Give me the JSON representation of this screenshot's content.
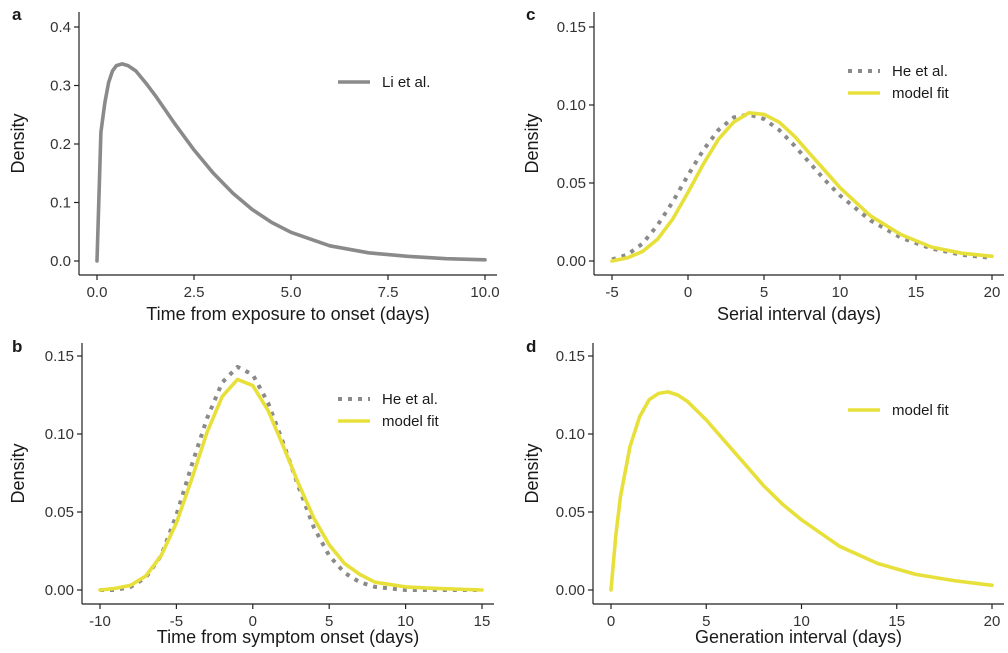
{
  "colors": {
    "grey": "#8a8a8a",
    "yellow": "#e8e03a"
  },
  "chart_data": [
    {
      "panel": "a",
      "type": "line",
      "xlabel": "Time from exposure to onset (days)",
      "ylabel": "Density",
      "xlim": [
        0,
        10
      ],
      "ylim": [
        0,
        0.4
      ],
      "xticks": [
        0,
        2.5,
        5,
        7.5,
        10
      ],
      "xtick_labels": [
        "0.0",
        "2.5",
        "5.0",
        "7.5",
        "10.0"
      ],
      "yticks": [
        0,
        0.1,
        0.2,
        0.3,
        0.4
      ],
      "ytick_labels": [
        "0.0",
        "0.1",
        "0.2",
        "0.3",
        "0.4"
      ],
      "legend_position": "top-right",
      "series": [
        {
          "name": "Li et al.",
          "style": "solid",
          "color": "#8a8a8a",
          "x": [
            0,
            0.1,
            0.2,
            0.3,
            0.4,
            0.5,
            0.65,
            0.8,
            1.0,
            1.25,
            1.5,
            2.0,
            2.5,
            3.0,
            3.5,
            4.0,
            4.5,
            5.0,
            6.0,
            7.0,
            8.0,
            9.0,
            10.0
          ],
          "y": [
            0.0,
            0.22,
            0.27,
            0.305,
            0.325,
            0.334,
            0.337,
            0.334,
            0.325,
            0.305,
            0.283,
            0.235,
            0.19,
            0.15,
            0.116,
            0.088,
            0.066,
            0.049,
            0.026,
            0.014,
            0.008,
            0.004,
            0.002
          ]
        }
      ]
    },
    {
      "panel": "b",
      "type": "line",
      "xlabel": "Time from symptom onset (days)",
      "ylabel": "Density",
      "xlim": [
        -10,
        15
      ],
      "ylim": [
        0,
        0.15
      ],
      "xticks": [
        -10,
        -5,
        0,
        5,
        10,
        15
      ],
      "xtick_labels": [
        "-10",
        "-5",
        "0",
        "5",
        "10",
        "15"
      ],
      "yticks": [
        0,
        0.05,
        0.1,
        0.15
      ],
      "ytick_labels": [
        "0.00",
        "0.05",
        "0.10",
        "0.15"
      ],
      "legend_position": "top-right",
      "series": [
        {
          "name": "He et al.",
          "style": "dotted",
          "color": "#8a8a8a",
          "x": [
            -10,
            -9,
            -8,
            -7,
            -6,
            -5,
            -4,
            -3,
            -2,
            -1,
            0,
            1,
            2,
            3,
            4,
            5,
            6,
            7,
            8,
            10,
            12,
            15
          ],
          "y": [
            0.0,
            0.0,
            0.002,
            0.008,
            0.022,
            0.048,
            0.08,
            0.11,
            0.133,
            0.143,
            0.138,
            0.12,
            0.094,
            0.066,
            0.04,
            0.022,
            0.011,
            0.005,
            0.002,
            0.0,
            0.0,
            0.0
          ]
        },
        {
          "name": "model fit",
          "style": "solid",
          "color": "#e8e03a",
          "x": [
            -10,
            -9,
            -8,
            -7,
            -6,
            -5,
            -4,
            -3,
            -2,
            -1,
            0,
            1,
            2,
            3,
            4,
            5,
            6,
            7,
            8,
            10,
            12,
            15
          ],
          "y": [
            0.0,
            0.001,
            0.003,
            0.009,
            0.022,
            0.043,
            0.071,
            0.101,
            0.124,
            0.135,
            0.131,
            0.115,
            0.092,
            0.068,
            0.046,
            0.029,
            0.017,
            0.01,
            0.005,
            0.002,
            0.001,
            0.0
          ]
        }
      ]
    },
    {
      "panel": "c",
      "type": "line",
      "xlabel": "Serial interval (days)",
      "ylabel": "Density",
      "xlim": [
        -5,
        20
      ],
      "ylim": [
        0,
        0.15
      ],
      "xticks": [
        -5,
        0,
        5,
        10,
        15,
        20
      ],
      "xtick_labels": [
        "-5",
        "0",
        "5",
        "10",
        "15",
        "20"
      ],
      "yticks": [
        0,
        0.05,
        0.1,
        0.15
      ],
      "ytick_labels": [
        "0.00",
        "0.05",
        "0.10",
        "0.15"
      ],
      "legend_position": "top-right",
      "series": [
        {
          "name": "He et al.",
          "style": "dotted",
          "color": "#8a8a8a",
          "x": [
            -5,
            -4,
            -3,
            -2,
            -1,
            0,
            1,
            2,
            3,
            4,
            5,
            6,
            7,
            8,
            9,
            10,
            12,
            14,
            16,
            18,
            20
          ],
          "y": [
            0.001,
            0.004,
            0.011,
            0.023,
            0.038,
            0.055,
            0.071,
            0.084,
            0.092,
            0.094,
            0.091,
            0.084,
            0.074,
            0.063,
            0.052,
            0.042,
            0.026,
            0.015,
            0.008,
            0.004,
            0.002
          ]
        },
        {
          "name": "model fit",
          "style": "solid",
          "color": "#e8e03a",
          "x": [
            -5,
            -4,
            -3,
            -2,
            -1,
            0,
            1,
            2,
            3,
            4,
            5,
            6,
            7,
            8,
            9,
            10,
            12,
            14,
            16,
            18,
            20
          ],
          "y": [
            0.0,
            0.002,
            0.006,
            0.014,
            0.027,
            0.044,
            0.062,
            0.078,
            0.089,
            0.095,
            0.094,
            0.089,
            0.08,
            0.069,
            0.058,
            0.047,
            0.029,
            0.017,
            0.009,
            0.005,
            0.003
          ]
        }
      ]
    },
    {
      "panel": "d",
      "type": "line",
      "xlabel": "Generation interval (days)",
      "ylabel": "Density",
      "xlim": [
        0,
        20
      ],
      "ylim": [
        0,
        0.15
      ],
      "xticks": [
        0,
        5,
        10,
        15,
        20
      ],
      "xtick_labels": [
        "0",
        "5",
        "10",
        "15",
        "20"
      ],
      "yticks": [
        0,
        0.05,
        0.1,
        0.15
      ],
      "ytick_labels": [
        "0.00",
        "0.05",
        "0.10",
        "0.15"
      ],
      "legend_position": "top-right",
      "series": [
        {
          "name": "model fit",
          "style": "solid",
          "color": "#e8e03a",
          "x": [
            0,
            0.25,
            0.5,
            1.0,
            1.5,
            2.0,
            2.5,
            3.0,
            3.5,
            4.0,
            5.0,
            6.0,
            7.0,
            8.0,
            9.0,
            10.0,
            12.0,
            14.0,
            16.0,
            18.0,
            20.0
          ],
          "y": [
            0.0,
            0.035,
            0.06,
            0.092,
            0.111,
            0.122,
            0.126,
            0.127,
            0.125,
            0.121,
            0.109,
            0.095,
            0.081,
            0.067,
            0.055,
            0.045,
            0.028,
            0.017,
            0.01,
            0.006,
            0.003
          ]
        }
      ]
    }
  ]
}
